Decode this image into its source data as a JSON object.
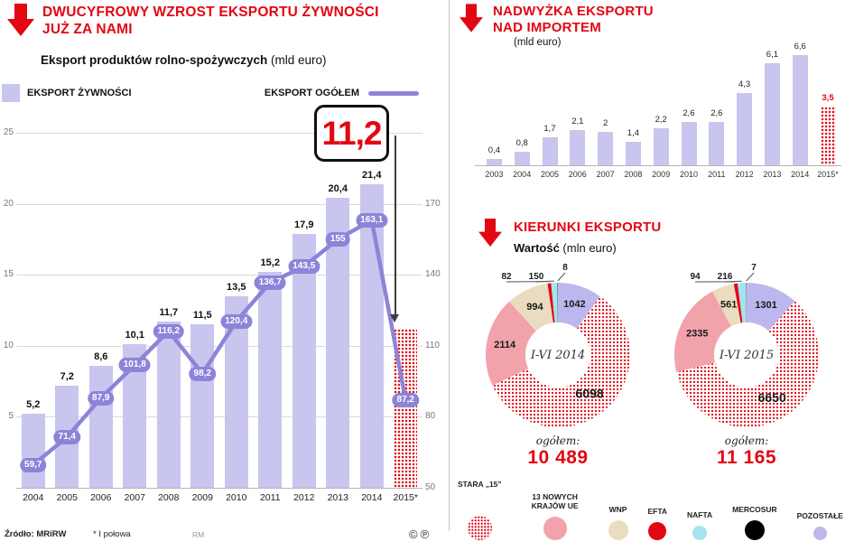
{
  "colors": {
    "red": "#e30613",
    "bar": "#c8c5ef",
    "line": "#8d84d9",
    "pink": "#f2a2ab",
    "beige": "#eadcc0",
    "cyan": "#a5e3ee",
    "black": "#000000",
    "lavender": "#bcb8ed"
  },
  "left": {
    "header_line1": "DWUCYFROWY WZROST EKSPORTU ŻYWNOŚCI",
    "header_line2": "JUŻ ZA NAMI",
    "chart_title": "Eksport produktów rolno-spożywczych",
    "chart_title_unit": " (mld euro)",
    "legend_bars": "EKSPORT ŻYWNOŚCI",
    "legend_line": "EKSPORT OGÓŁEM",
    "callout": "11,2",
    "footer_source": "Źródło: MRiRW",
    "footer_note": "* I połowa",
    "footer_credit": "RM",
    "footer_marks": "©℗"
  },
  "right": {
    "surplus_title_line1": "NADWYŻKA EKSPORTU",
    "surplus_title_line2": "NAD IMPORTEM",
    "surplus_unit": "(mld euro)",
    "directions_title": "KIERUNKI EKSPORTU",
    "directions_subtitle_bold": "Wartość",
    "directions_subtitle_unit": " (mln euro)"
  },
  "chart_data": [
    {
      "id": "eksport-rolno-spozywczy",
      "type": "bar+line",
      "title": "Eksport produktów rolno-spożywczych (mld euro)",
      "categories": [
        "2004",
        "2005",
        "2006",
        "2007",
        "2008",
        "2009",
        "2010",
        "2011",
        "2012",
        "2013",
        "2014",
        "2015*"
      ],
      "series": [
        {
          "name": "EKSPORT ŻYWNOŚCI",
          "type": "bar",
          "axis": "left",
          "values": [
            5.2,
            7.2,
            8.6,
            10.1,
            11.7,
            11.5,
            13.5,
            15.2,
            17.9,
            20.4,
            21.4,
            11.2
          ],
          "labels": [
            "5,2",
            "7,2",
            "8,6",
            "10,1",
            "11,7",
            "11,5",
            "13,5",
            "15,2",
            "17,9",
            "20,4",
            "21,4",
            "11,2"
          ],
          "highlight_last": true
        },
        {
          "name": "EKSPORT OGÓŁEM",
          "type": "line",
          "axis": "right",
          "values": [
            59.7,
            71.4,
            87.9,
            101.8,
            116.2,
            98.2,
            120.4,
            136.7,
            143.5,
            155,
            163.1,
            87.2
          ],
          "labels": [
            "59,7",
            "71,4",
            "87,9",
            "101,8",
            "116,2",
            "98,2",
            "120,4",
            "136,7",
            "143,5",
            "155",
            "163,1",
            "87,2"
          ]
        }
      ],
      "left_axis": {
        "range": [
          0,
          25
        ],
        "ticks": [
          5,
          10,
          15,
          20,
          25
        ]
      },
      "right_axis": {
        "range": [
          50,
          170
        ],
        "ticks": [
          50,
          80,
          110,
          140,
          170
        ]
      },
      "grid": true,
      "note": "* I połowa"
    },
    {
      "id": "nadwyzka-eksportu",
      "type": "bar",
      "title": "NADWYŻKA EKSPORTU NAD IMPORTEM (mld euro)",
      "categories": [
        "2003",
        "2004",
        "2005",
        "2006",
        "2007",
        "2008",
        "2009",
        "2010",
        "2011",
        "2012",
        "2013",
        "2014",
        "2015*"
      ],
      "values": [
        0.4,
        0.8,
        1.7,
        2.1,
        2,
        1.4,
        2.2,
        2.6,
        2.6,
        4.3,
        6.1,
        6.6,
        3.5
      ],
      "labels": [
        "0,4",
        "0,8",
        "1,7",
        "2,1",
        "2",
        "1,4",
        "2,2",
        "2,6",
        "2,6",
        "4,3",
        "6,1",
        "6,6",
        "3,5"
      ],
      "highlight_last": true
    },
    {
      "id": "kierunki-2014",
      "type": "donut",
      "center_label": "I-VI 2014",
      "total_label": "ogółem:",
      "total": "10 489",
      "slices": [
        {
          "name": "POZOSTAŁE",
          "value": 1042,
          "swatch": "lavender",
          "label": "1042",
          "label_pos": "inside"
        },
        {
          "name": "STARA 15",
          "value": 6098,
          "swatch": "dotted-red",
          "label": "6098",
          "label_pos": "inside-big"
        },
        {
          "name": "13 NOWYCH KRAJÓW UE",
          "value": 2114,
          "swatch": "pink",
          "label": "2114",
          "label_pos": "inside"
        },
        {
          "name": "WNP",
          "value": 994,
          "swatch": "beige",
          "label": "994",
          "label_pos": "inside"
        },
        {
          "name": "EFTA",
          "value": 82,
          "swatch": "red",
          "label": "82",
          "label_pos": "out"
        },
        {
          "name": "NAFTA",
          "value": 150,
          "swatch": "cyan",
          "label": "150",
          "label_pos": "out"
        },
        {
          "name": "MERCOSUR",
          "value": 8,
          "swatch": "black",
          "label": "8",
          "label_pos": "out"
        }
      ]
    },
    {
      "id": "kierunki-2015",
      "type": "donut",
      "center_label": "I-VI 2015",
      "total_label": "ogółem:",
      "total": "11 165",
      "slices": [
        {
          "name": "POZOSTAŁE",
          "value": 1301,
          "swatch": "lavender",
          "label": "1301",
          "label_pos": "inside"
        },
        {
          "name": "STARA 15",
          "value": 6650,
          "swatch": "dotted-red",
          "label": "6650",
          "label_pos": "inside-big"
        },
        {
          "name": "13 NOWYCH KRAJÓW UE",
          "value": 2335,
          "swatch": "pink",
          "label": "2335",
          "label_pos": "inside"
        },
        {
          "name": "WNP",
          "value": 561,
          "swatch": "beige",
          "label": "561",
          "label_pos": "inside"
        },
        {
          "name": "EFTA",
          "value": 94,
          "swatch": "red",
          "label": "94",
          "label_pos": "out"
        },
        {
          "name": "NAFTA",
          "value": 216,
          "swatch": "cyan",
          "label": "216",
          "label_pos": "out"
        },
        {
          "name": "MERCOSUR",
          "value": 7,
          "swatch": "black",
          "label": "7",
          "label_pos": "out"
        }
      ]
    }
  ],
  "directions_legend": [
    {
      "label": "STARA „15”",
      "swatch": "dotted-red"
    },
    {
      "label": "13 NOWYCH KRAJÓW UE",
      "swatch": "pink"
    },
    {
      "label": "WNP",
      "swatch": "beige"
    },
    {
      "label": "EFTA",
      "swatch": "red"
    },
    {
      "label": "NAFTA",
      "swatch": "cyan"
    },
    {
      "label": "MERCOSUR",
      "swatch": "black"
    },
    {
      "label": "POZOSTAŁE",
      "swatch": "lavender"
    }
  ]
}
